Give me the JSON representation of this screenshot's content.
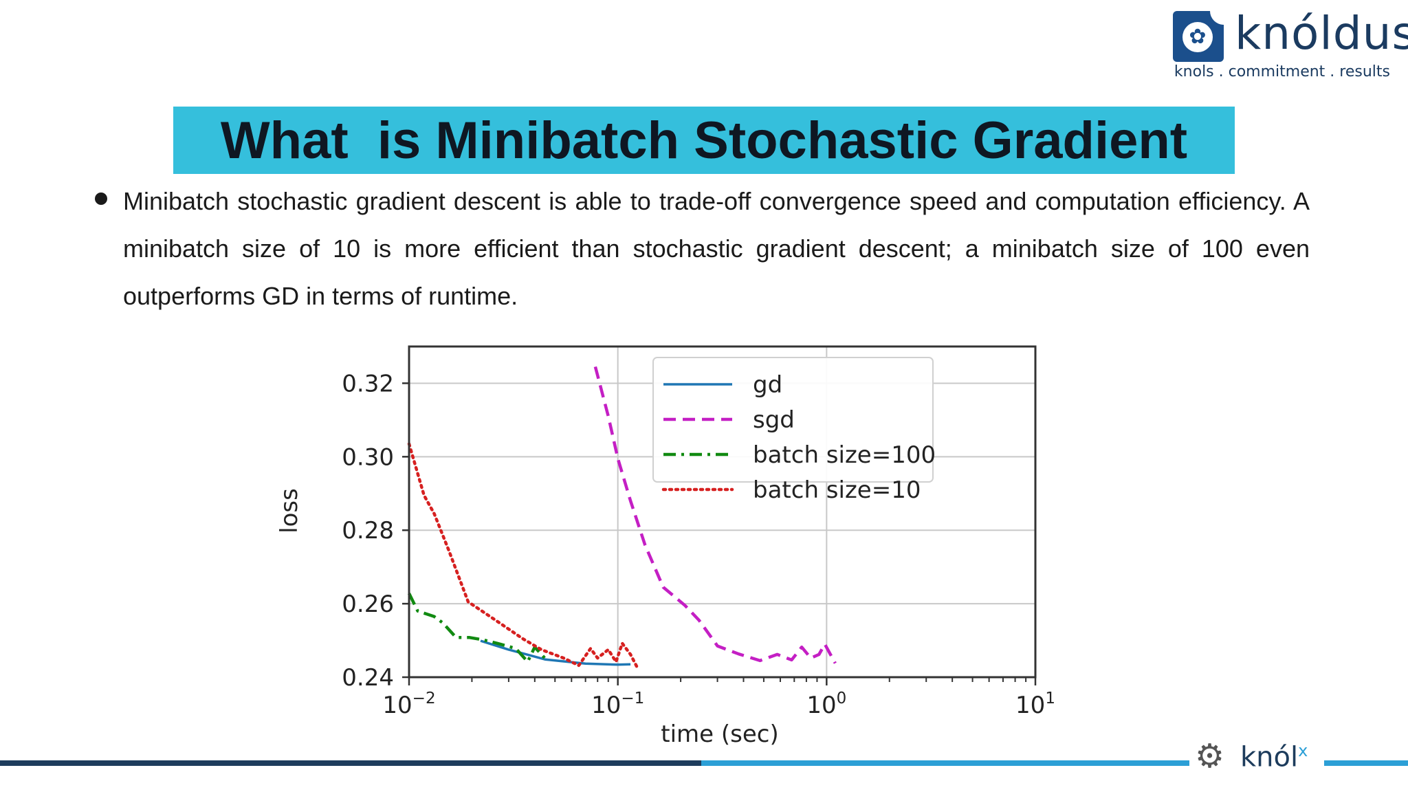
{
  "logo": {
    "name": "knóldus",
    "tagline": "knols . commitment . results",
    "icon": "maple-leaf-icon"
  },
  "slide": {
    "title": "What  is Minibatch Stochastic Gradient",
    "bullet": "Minibatch stochastic gradient descent is able to trade-off convergence speed and computation efficiency. A minibatch size of 10 is more efficient than stochastic gradient descent; a minibatch size of 100 even outperforms GD in terms of runtime."
  },
  "footer": {
    "brand": "knól",
    "brand_sup": "x",
    "icon": "head-gears-icon"
  },
  "colors": {
    "title_bar": "#35bfdc",
    "gd": "#1f77b4",
    "sgd": "#c41fc4",
    "batch100": "#118a11",
    "batch10": "#d62020"
  },
  "chart_data": {
    "type": "line",
    "title": "",
    "xlabel": "time (sec)",
    "ylabel": "loss",
    "xscale": "log",
    "xlim": [
      0.01,
      10
    ],
    "ylim": [
      0.24,
      0.33
    ],
    "xticks": [
      {
        "value": 0.01,
        "base": "10",
        "exp": "−2"
      },
      {
        "value": 0.1,
        "base": "10",
        "exp": "−1"
      },
      {
        "value": 1,
        "base": "10",
        "exp": "0"
      },
      {
        "value": 10,
        "base": "10",
        "exp": "1"
      }
    ],
    "yticks": [
      {
        "value": 0.24,
        "label": "0.24"
      },
      {
        "value": 0.26,
        "label": "0.26"
      },
      {
        "value": 0.28,
        "label": "0.28"
      },
      {
        "value": 0.3,
        "label": "0.30"
      },
      {
        "value": 0.32,
        "label": "0.32"
      }
    ],
    "grid": true,
    "legend_position": "top-right",
    "series": [
      {
        "name": "gd",
        "style": "solid",
        "x": [
          0.022,
          0.03,
          0.045,
          0.07,
          0.1,
          0.115
        ],
        "y": [
          0.2499,
          0.2475,
          0.2448,
          0.2437,
          0.2434,
          0.2435
        ]
      },
      {
        "name": "sgd",
        "style": "dashed",
        "x": [
          0.078,
          0.09,
          0.1,
          0.115,
          0.135,
          0.165,
          0.21,
          0.245,
          0.3,
          0.38,
          0.48,
          0.58,
          0.68,
          0.76,
          0.84,
          0.92,
          0.98,
          1.1
        ],
        "y": [
          0.3245,
          0.311,
          0.2995,
          0.288,
          0.276,
          0.2645,
          0.2595,
          0.2555,
          0.2485,
          0.2463,
          0.2445,
          0.2462,
          0.2447,
          0.2482,
          0.2452,
          0.2462,
          0.249,
          0.2438
        ]
      },
      {
        "name": "batch size=100",
        "style": "dashdot",
        "x": [
          0.01,
          0.011,
          0.0132,
          0.0145,
          0.0168,
          0.0195,
          0.0225,
          0.0265,
          0.0325,
          0.037,
          0.04,
          0.045
        ],
        "y": [
          0.2628,
          0.258,
          0.2565,
          0.2548,
          0.2508,
          0.2508,
          0.2502,
          0.2492,
          0.2478,
          0.2442,
          0.2482,
          0.245
        ]
      },
      {
        "name": "batch size=10",
        "style": "dotted",
        "x": [
          0.01,
          0.0118,
          0.0132,
          0.0155,
          0.0192,
          0.026,
          0.035,
          0.043,
          0.055,
          0.065,
          0.074,
          0.08,
          0.09,
          0.098,
          0.105,
          0.115,
          0.125
        ],
        "y": [
          0.3035,
          0.2895,
          0.2845,
          0.2745,
          0.2605,
          0.2555,
          0.2505,
          0.2475,
          0.2452,
          0.2432,
          0.2478,
          0.2452,
          0.2475,
          0.2442,
          0.2492,
          0.2462,
          0.2422
        ]
      }
    ]
  }
}
